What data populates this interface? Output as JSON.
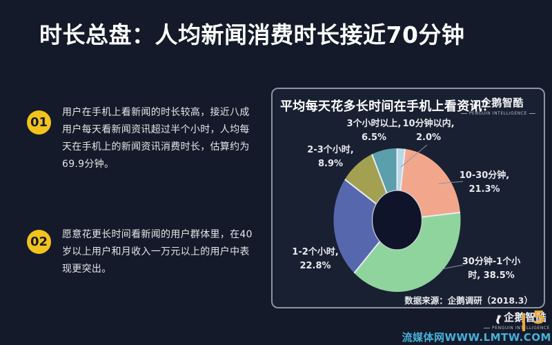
{
  "slide": {
    "title": "时长总盘：人均新闻消费时长接近70分钟",
    "page_number": "5",
    "watermark": "流媒体网WWW.LMTW.COM"
  },
  "points": [
    {
      "number": "01",
      "lines": [
        "用户在手机上看新闻的时长较高，接近八成",
        "用户每天看新闻资讯超过半个小时，人均每",
        "天在手机上的新闻资讯消费时长，估算约为",
        "69.9分钟。"
      ]
    },
    {
      "number": "02",
      "lines": [
        "愿意花更长时间看新闻的用户群体里，在40",
        "岁以上用户和月收入一万元以上的用户中表",
        "现更突出。"
      ]
    }
  ],
  "brand": {
    "logo_text": "企鹅智酷",
    "logo_tagline": "PENGUIN INTELLIGENCE"
  },
  "colors": {
    "background": "#151a2a",
    "panel_background": "#192031",
    "panel_border": "#8e95a2",
    "accent_yellow": "#f2c31c",
    "page_accent": "#eba93a",
    "watermark_blue": "#44b2da",
    "title_white": "#ffffff",
    "slice_separator": "#e9edf2",
    "donut_hole": "#0f142a"
  },
  "chart_data": {
    "type": "pie",
    "subtype": "donut",
    "title": "平均每天花多长时间在手机上看资讯？",
    "source": "数据来源：企鹅调研（2018.3）",
    "unit": "percent",
    "start_angle_deg": 0,
    "direction": "clockwise",
    "legend_position": "around-labels",
    "slices": [
      {
        "label": "10分钟以内",
        "value": 2.0,
        "color": "#b7d8e6",
        "label_lines": [
          "10分钟以内,",
          "2.0%"
        ]
      },
      {
        "label": "10-30分钟",
        "value": 21.3,
        "color": "#f2a78c",
        "label_lines": [
          "10-30分钟,",
          "21.3%"
        ]
      },
      {
        "label": "30分钟-1个小时",
        "value": 38.5,
        "color": "#8fd49d",
        "label_lines": [
          "30分钟-1个小",
          "时, 38.5%"
        ]
      },
      {
        "label": "1-2个小时",
        "value": 22.8,
        "color": "#5767ae",
        "label_lines": [
          "1-2个小时,",
          "22.8%"
        ]
      },
      {
        "label": "2-3个小时",
        "value": 8.9,
        "color": "#a3a052",
        "label_lines": [
          "2-3个小时,",
          "8.9%"
        ]
      },
      {
        "label": "3个小时以上",
        "value": 6.5,
        "color": "#5b9fab",
        "label_lines": [
          "3个小时以上,",
          "6.5%"
        ]
      }
    ]
  }
}
